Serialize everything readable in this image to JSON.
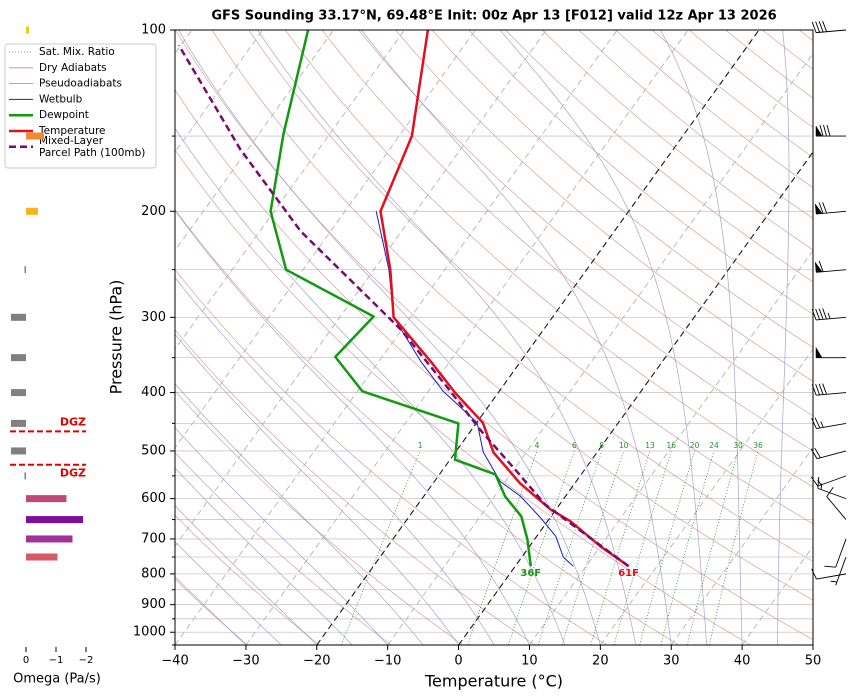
{
  "chart_data": {
    "type": "skewt",
    "title": "GFS Sounding 33.17°N, 69.48°E Init: 00z Apr 13 [F012] valid 12z Apr 13 2026",
    "xlabel": "Temperature (°C)",
    "ylabel": "Pressure (hPa)",
    "xlim": [
      -40,
      50
    ],
    "xticks": [
      {
        "value": -40,
        "label": "−40"
      },
      {
        "value": -30,
        "label": "−30"
      },
      {
        "value": -20,
        "label": "−20"
      },
      {
        "value": -10,
        "label": "−10"
      },
      0,
      10,
      20,
      30,
      40,
      50
    ],
    "ylim": [
      1050,
      100
    ],
    "ylog": true,
    "yticks": [
      100,
      200,
      300,
      400,
      500,
      600,
      700,
      800,
      900,
      1000
    ],
    "yticks_minor": [
      150,
      250,
      350,
      450,
      550,
      650,
      750,
      850,
      950,
      1050
    ],
    "grid": true,
    "highlight_isotherms": [
      -20,
      0
    ],
    "reference_lines": [
      {
        "name": "Sat. Mix. Ratio",
        "color": "#2e8b2e",
        "dash": "dotted",
        "labels": [
          1,
          4,
          6,
          8,
          10,
          13,
          16,
          20,
          24,
          30,
          36
        ]
      },
      {
        "name": "Dry Adiabats",
        "color": "#d08888"
      },
      {
        "name": "Pseudoadiabats",
        "color": "#8c8cc8"
      }
    ],
    "series": [
      {
        "name": "Wetbulb",
        "color": "#1a1acc",
        "width": 1,
        "pressure": [
          777,
          751,
          693,
          645,
          595,
          562,
          502,
          449,
          398,
          355,
          300,
          250,
          200
        ],
        "values": [
          8.2,
          5.9,
          2.7,
          -1.4,
          -6.3,
          -10.7,
          -16.1,
          -19.9,
          -27.9,
          -34.1,
          -42.4,
          -47.9,
          -55.6
        ]
      },
      {
        "name": "Dewpoint",
        "color": "#109a10",
        "width": 2.5,
        "surface_label": "36F",
        "pressure": [
          777,
          701,
          642,
          595,
          547,
          517,
          450,
          398,
          349,
          299,
          250,
          200,
          149,
          100
        ],
        "values": [
          2.2,
          -1.0,
          -4.2,
          -8.5,
          -12.1,
          -19.3,
          -22.5,
          -39.3,
          -46.6,
          -45.3,
          -62.4,
          -70.5,
          -76.5,
          -83.6
        ]
      },
      {
        "name": "Temperature",
        "color": "#e0101e",
        "width": 2.5,
        "surface_label": "61F",
        "pressure": [
          777,
          720,
          654,
          625,
          566,
          503,
          449,
          400,
          355,
          300,
          250,
          200,
          150,
          100
        ],
        "values": [
          16.0,
          10.0,
          3.2,
          -0.8,
          -7.7,
          -14.6,
          -19.1,
          -26.1,
          -32.7,
          -42.4,
          -47.7,
          -55.0,
          -58.2,
          -66.7
        ]
      },
      {
        "name": [
          "Mixed-Layer",
          "Parcel Path (100mb)"
        ],
        "color": "#7a0a6e",
        "width": 2.5,
        "dash": "dashed",
        "pressure": [
          777,
          614,
          537,
          461,
          395,
          314,
          260,
          216,
          158,
          106
        ],
        "values": [
          16.0,
          -2.0,
          -9.8,
          -18.8,
          -27.3,
          -40.2,
          -52.3,
          -64.2,
          -81.0,
          -100.3
        ]
      }
    ],
    "omega": {
      "xlabel": "Omega (Pa/s)",
      "xlim": [
        0.6,
        -2.5
      ],
      "xticks": [
        0,
        {
          "value": -1,
          "label": "−1"
        },
        {
          "value": -2,
          "label": "−2"
        }
      ],
      "pressure": [
        100,
        150,
        200,
        250,
        300,
        350,
        400,
        450,
        500,
        550,
        600,
        650,
        700,
        750
      ],
      "values": [
        -0.1,
        -0.6,
        -0.4,
        0.05,
        0.5,
        0.5,
        0.5,
        0.5,
        0.5,
        0.05,
        -1.35,
        -1.9,
        -1.55,
        -1.05
      ],
      "colors": [
        "#f5c518",
        "#f08c30",
        "#f5b418",
        "#808080",
        "#808080",
        "#808080",
        "#808080",
        "#808080",
        "#808080",
        "#808080",
        "#c04878",
        "#7d0f9c",
        "#a4309a",
        "#d45a64"
      ]
    },
    "dgz": {
      "label": "DGZ",
      "top": 464,
      "bottom": 527,
      "color": "#e00000"
    },
    "wind": {
      "pressure": [
        100,
        150,
        200,
        250,
        300,
        350,
        400,
        450,
        500,
        550,
        600,
        650,
        700,
        750,
        800
      ],
      "speed": [
        40,
        80,
        70,
        60,
        45,
        50,
        40,
        25,
        20,
        15,
        15,
        10,
        10,
        5,
        10
      ],
      "direction": [
        265,
        270,
        265,
        265,
        265,
        270,
        265,
        260,
        255,
        250,
        290,
        320,
        200,
        200,
        260
      ]
    }
  }
}
